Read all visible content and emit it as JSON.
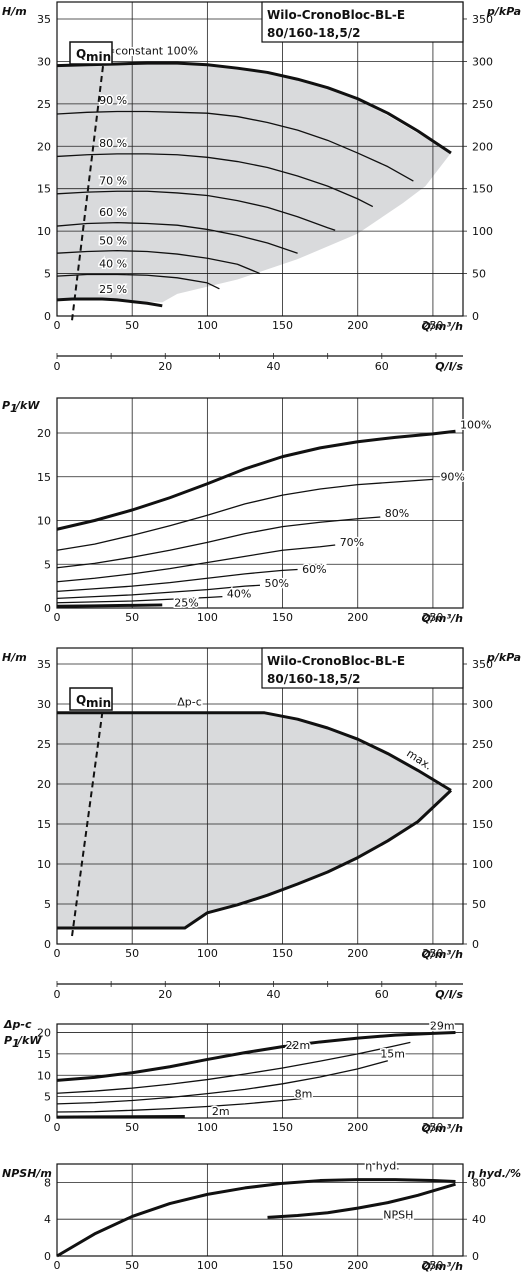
{
  "chart_data": [
    {
      "id": "hq_speed",
      "type": "line",
      "title": "Wilo-CronoBloc-BL-E",
      "subtitle": "80/160-18,5/2",
      "ylabel": "H/m",
      "ylabel_right": "p/kPa",
      "xlabel": "Q/m³/h",
      "xlabel_secondary": "Q/l/s",
      "xlim": [
        0,
        270
      ],
      "ylim": [
        0,
        37
      ],
      "xticks": [
        0,
        50,
        100,
        150,
        200,
        250
      ],
      "yticks": [
        0,
        5,
        10,
        15,
        20,
        25,
        30,
        35
      ],
      "yticks_right": [
        0,
        50,
        100,
        150,
        200,
        250,
        300,
        350
      ],
      "xticks_secondary": [
        0,
        20,
        40,
        60
      ],
      "grid": true,
      "qmin_label": "Q",
      "qmin_sub": "min",
      "qmin_line": {
        "x": [
          10,
          32
        ],
        "y": [
          -0.5,
          31.5
        ]
      },
      "region": {
        "x": [
          0,
          0,
          20,
          50,
          80,
          100,
          140,
          170,
          200,
          225,
          245,
          262,
          245,
          230,
          200,
          160,
          120,
          80,
          70,
          40,
          0
        ],
        "y": [
          1.8,
          29.5,
          29.6,
          29.8,
          29.8,
          29.6,
          28.7,
          27.6,
          25.6,
          23.1,
          21.0,
          19.2,
          15.3,
          13.3,
          9.7,
          6.7,
          4.3,
          2.6,
          1.6,
          1.9,
          1.8
        ]
      },
      "series": [
        {
          "name": "n=constant 100%",
          "bold": true,
          "x": [
            0,
            20,
            40,
            60,
            80,
            100,
            120,
            140,
            160,
            180,
            200,
            220,
            240,
            262
          ],
          "y": [
            29.5,
            29.6,
            29.7,
            29.8,
            29.8,
            29.6,
            29.2,
            28.7,
            27.9,
            26.9,
            25.6,
            23.9,
            21.8,
            19.2
          ]
        },
        {
          "name": "90 %",
          "x": [
            0,
            20,
            40,
            60,
            80,
            100,
            120,
            140,
            160,
            180,
            200,
            220,
            237
          ],
          "y": [
            23.8,
            24.0,
            24.1,
            24.1,
            24.0,
            23.9,
            23.5,
            22.8,
            21.9,
            20.7,
            19.2,
            17.6,
            15.9
          ]
        },
        {
          "name": "80 %",
          "x": [
            0,
            20,
            40,
            60,
            80,
            100,
            120,
            140,
            160,
            180,
            200,
            210
          ],
          "y": [
            18.8,
            19.0,
            19.1,
            19.1,
            19.0,
            18.7,
            18.2,
            17.5,
            16.5,
            15.3,
            13.8,
            12.9
          ]
        },
        {
          "name": "70 %",
          "x": [
            0,
            20,
            40,
            60,
            80,
            100,
            120,
            140,
            160,
            180,
            185
          ],
          "y": [
            14.4,
            14.6,
            14.7,
            14.7,
            14.5,
            14.2,
            13.6,
            12.8,
            11.7,
            10.4,
            10.1
          ]
        },
        {
          "name": "60 %",
          "x": [
            0,
            20,
            40,
            60,
            80,
            100,
            120,
            140,
            160
          ],
          "y": [
            10.6,
            10.9,
            11.0,
            10.9,
            10.7,
            10.2,
            9.5,
            8.6,
            7.4
          ]
        },
        {
          "name": "50 %",
          "x": [
            0,
            20,
            40,
            60,
            80,
            100,
            120,
            135
          ],
          "y": [
            7.4,
            7.6,
            7.7,
            7.6,
            7.3,
            6.8,
            6.1,
            5.0
          ]
        },
        {
          "name": "40 %",
          "x": [
            0,
            20,
            40,
            60,
            80,
            100,
            108
          ],
          "y": [
            4.7,
            4.9,
            4.9,
            4.8,
            4.5,
            3.9,
            3.2
          ]
        },
        {
          "name": "25 %",
          "bold": true,
          "x": [
            0,
            10,
            20,
            30,
            40,
            50,
            60,
            70
          ],
          "y": [
            1.9,
            2.0,
            2.0,
            2.0,
            1.9,
            1.7,
            1.5,
            1.2
          ]
        }
      ],
      "labels": [
        {
          "text": "n=constant 100%",
          "x": 28,
          "y": 30.8
        },
        {
          "text": "90 %",
          "x": 28,
          "y": 25.0
        },
        {
          "text": "80 %",
          "x": 28,
          "y": 19.9
        },
        {
          "text": "70 %",
          "x": 28,
          "y": 15.5
        },
        {
          "text": "60 %",
          "x": 28,
          "y": 11.8
        },
        {
          "text": "50 %",
          "x": 28,
          "y": 8.4
        },
        {
          "text": "40 %",
          "x": 28,
          "y": 5.7
        },
        {
          "text": "25 %",
          "x": 28,
          "y": 2.7
        }
      ]
    },
    {
      "id": "p1_speed",
      "type": "line",
      "ylabel": "P1/kW",
      "xlabel": "Q/m³/h",
      "xlim": [
        0,
        270
      ],
      "ylim": [
        0,
        24
      ],
      "xticks": [
        0,
        50,
        100,
        150,
        200,
        250
      ],
      "yticks": [
        0,
        5,
        10,
        15,
        20
      ],
      "grid": true,
      "series": [
        {
          "name": "100%",
          "bold": true,
          "x": [
            0,
            25,
            50,
            75,
            100,
            125,
            150,
            175,
            200,
            225,
            250,
            265
          ],
          "y": [
            9.0,
            10.0,
            11.2,
            12.6,
            14.2,
            15.9,
            17.3,
            18.3,
            19.0,
            19.5,
            19.9,
            20.2
          ]
        },
        {
          "name": "90%",
          "x": [
            0,
            25,
            50,
            75,
            100,
            125,
            150,
            175,
            200,
            225,
            250
          ],
          "y": [
            6.6,
            7.3,
            8.3,
            9.4,
            10.6,
            11.9,
            12.9,
            13.6,
            14.1,
            14.4,
            14.7
          ]
        },
        {
          "name": "80%",
          "x": [
            0,
            25,
            50,
            75,
            100,
            125,
            150,
            175,
            200,
            215
          ],
          "y": [
            4.6,
            5.1,
            5.8,
            6.6,
            7.5,
            8.5,
            9.3,
            9.8,
            10.2,
            10.4
          ]
        },
        {
          "name": "70%",
          "x": [
            0,
            25,
            50,
            75,
            100,
            125,
            150,
            175,
            185
          ],
          "y": [
            3.0,
            3.4,
            3.9,
            4.5,
            5.2,
            5.9,
            6.6,
            7.0,
            7.2
          ]
        },
        {
          "name": "60%",
          "x": [
            0,
            25,
            50,
            75,
            100,
            125,
            150,
            160
          ],
          "y": [
            1.9,
            2.2,
            2.5,
            2.9,
            3.4,
            3.9,
            4.3,
            4.4
          ]
        },
        {
          "name": "50%",
          "x": [
            0,
            25,
            50,
            75,
            100,
            125,
            135
          ],
          "y": [
            1.1,
            1.3,
            1.5,
            1.8,
            2.1,
            2.5,
            2.6
          ]
        },
        {
          "name": "40%",
          "x": [
            0,
            25,
            50,
            75,
            100,
            110
          ],
          "y": [
            0.6,
            0.7,
            0.8,
            1.0,
            1.2,
            1.3
          ]
        },
        {
          "name": "25%",
          "bold": true,
          "x": [
            0,
            25,
            50,
            70
          ],
          "y": [
            0.2,
            0.25,
            0.3,
            0.35
          ]
        }
      ],
      "labels": [
        {
          "text": "100%",
          "x": 268,
          "y": 20.5
        },
        {
          "text": "90%",
          "x": 255,
          "y": 14.6
        },
        {
          "text": "80%",
          "x": 218,
          "y": 10.4
        },
        {
          "text": "70%",
          "x": 188,
          "y": 7.1
        },
        {
          "text": "60%",
          "x": 163,
          "y": 4.0
        },
        {
          "text": "50%",
          "x": 138,
          "y": 2.4
        },
        {
          "text": "40%",
          "x": 113,
          "y": 1.2
        },
        {
          "text": "25%",
          "x": 78,
          "y": 0.2
        }
      ]
    },
    {
      "id": "hq_dpc",
      "type": "area",
      "title": "Wilo-CronoBloc-BL-E",
      "subtitle": "80/160-18,5/2",
      "ylabel": "H/m",
      "ylabel_right": "p/kPa",
      "xlabel": "Q/m³/h",
      "xlabel_secondary": "Q/l/s",
      "xlim": [
        0,
        270
      ],
      "ylim": [
        0,
        37
      ],
      "xticks": [
        0,
        50,
        100,
        150,
        200,
        250
      ],
      "yticks": [
        0,
        5,
        10,
        15,
        20,
        25,
        30,
        35
      ],
      "yticks_right": [
        0,
        50,
        100,
        150,
        200,
        250,
        300,
        350
      ],
      "xticks_secondary": [
        0,
        20,
        40,
        60
      ],
      "grid": true,
      "qmin_label": "Q",
      "qmin_sub": "min",
      "qmin_line": {
        "x": [
          10,
          32
        ],
        "y": [
          1.0,
          31.5
        ]
      },
      "region": {
        "x": [
          0,
          138,
          160,
          180,
          200,
          220,
          240,
          262,
          240,
          220,
          200,
          180,
          160,
          140,
          120,
          100,
          85,
          0
        ],
        "y": [
          28.9,
          28.9,
          28.1,
          27.0,
          25.6,
          23.8,
          21.7,
          19.2,
          15.3,
          12.9,
          10.8,
          9.0,
          7.5,
          6.1,
          4.9,
          3.9,
          2.0,
          2.0
        ]
      },
      "series": [
        {
          "name": "Δp-c max.",
          "bold": true,
          "x": [
            0,
            138,
            160,
            180,
            200,
            220,
            240,
            262
          ],
          "y": [
            28.9,
            28.9,
            28.1,
            27.0,
            25.6,
            23.8,
            21.7,
            19.2
          ]
        },
        {
          "name": "lower",
          "bold": true,
          "x": [
            262,
            240,
            220,
            200,
            180,
            160,
            140,
            120,
            100,
            85,
            0
          ],
          "y": [
            19.2,
            15.3,
            12.9,
            10.8,
            9.0,
            7.5,
            6.1,
            4.9,
            3.9,
            2.0,
            2.0
          ]
        }
      ],
      "labels": [
        {
          "text": "Δp-c",
          "x": 80,
          "y": 29.8
        },
        {
          "text": "max.",
          "x": 232,
          "y": 23.6
        }
      ]
    },
    {
      "id": "p1_dpc",
      "type": "line",
      "ylabel": "Δp-c P1/kW",
      "xlabel": "Q/m³/h",
      "xlim": [
        0,
        270
      ],
      "ylim": [
        0,
        22
      ],
      "xticks": [
        0,
        50,
        100,
        150,
        200,
        250
      ],
      "yticks": [
        0,
        5,
        10,
        15,
        20
      ],
      "grid": true,
      "series": [
        {
          "name": "29m",
          "bold": true,
          "x": [
            0,
            25,
            50,
            75,
            100,
            125,
            150,
            175,
            200,
            225,
            250,
            265
          ],
          "y": [
            8.8,
            9.5,
            10.6,
            12.0,
            13.7,
            15.3,
            16.7,
            17.8,
            18.7,
            19.4,
            19.8,
            20.0
          ]
        },
        {
          "name": "22m",
          "x": [
            0,
            25,
            50,
            75,
            100,
            125,
            150,
            175,
            200,
            225,
            235
          ],
          "y": [
            5.8,
            6.3,
            7.0,
            7.9,
            9.0,
            10.3,
            11.7,
            13.3,
            15.0,
            16.9,
            17.7
          ]
        },
        {
          "name": "15m",
          "x": [
            0,
            25,
            50,
            75,
            100,
            125,
            150,
            175,
            200,
            220
          ],
          "y": [
            3.3,
            3.6,
            4.1,
            4.8,
            5.7,
            6.7,
            8.0,
            9.6,
            11.5,
            13.4
          ]
        },
        {
          "name": "8m",
          "x": [
            0,
            25,
            50,
            75,
            100,
            125,
            150,
            170
          ],
          "y": [
            1.4,
            1.5,
            1.8,
            2.2,
            2.7,
            3.3,
            4.1,
            4.8
          ]
        },
        {
          "name": "2m",
          "bold": true,
          "x": [
            0,
            25,
            50,
            85
          ],
          "y": [
            0.2,
            0.25,
            0.3,
            0.35
          ]
        }
      ],
      "labels": [
        {
          "text": "29m",
          "x": 248,
          "y": 20.7
        },
        {
          "text": "22m",
          "x": 152,
          "y": 16.2
        },
        {
          "text": "15m",
          "x": 215,
          "y": 14.2
        },
        {
          "text": "8m",
          "x": 158,
          "y": 4.8
        },
        {
          "text": "2m",
          "x": 103,
          "y": 0.7
        }
      ]
    },
    {
      "id": "npsh_eta",
      "type": "line",
      "ylabel": "NPSH/m",
      "ylabel_right": "η hyd./%",
      "xlabel": "Q/m³/h",
      "xlim": [
        0,
        270
      ],
      "ylim": [
        0,
        10
      ],
      "ylim_right": [
        0,
        100
      ],
      "xticks": [
        0,
        50,
        100,
        150,
        200,
        250
      ],
      "yticks": [
        0,
        4,
        8
      ],
      "yticks_right": [
        0,
        40,
        80
      ],
      "grid": true,
      "series": [
        {
          "name": "η hyd.",
          "axis": "right",
          "bold": true,
          "x": [
            0,
            25,
            50,
            75,
            100,
            125,
            150,
            175,
            200,
            225,
            250,
            265
          ],
          "y": [
            0,
            24,
            43,
            57,
            67,
            74,
            79,
            82,
            83,
            83,
            82,
            81
          ]
        },
        {
          "name": "NPSH",
          "axis": "left",
          "bold": true,
          "x": [
            140,
            160,
            180,
            200,
            220,
            240,
            265
          ],
          "y": [
            4.2,
            4.4,
            4.7,
            5.2,
            5.8,
            6.6,
            7.8
          ]
        }
      ],
      "labels": [
        {
          "text": "η hyd.",
          "x": 205,
          "y": 9.4
        },
        {
          "text": "NPSH",
          "x": 217,
          "y": 4.1
        }
      ]
    }
  ]
}
